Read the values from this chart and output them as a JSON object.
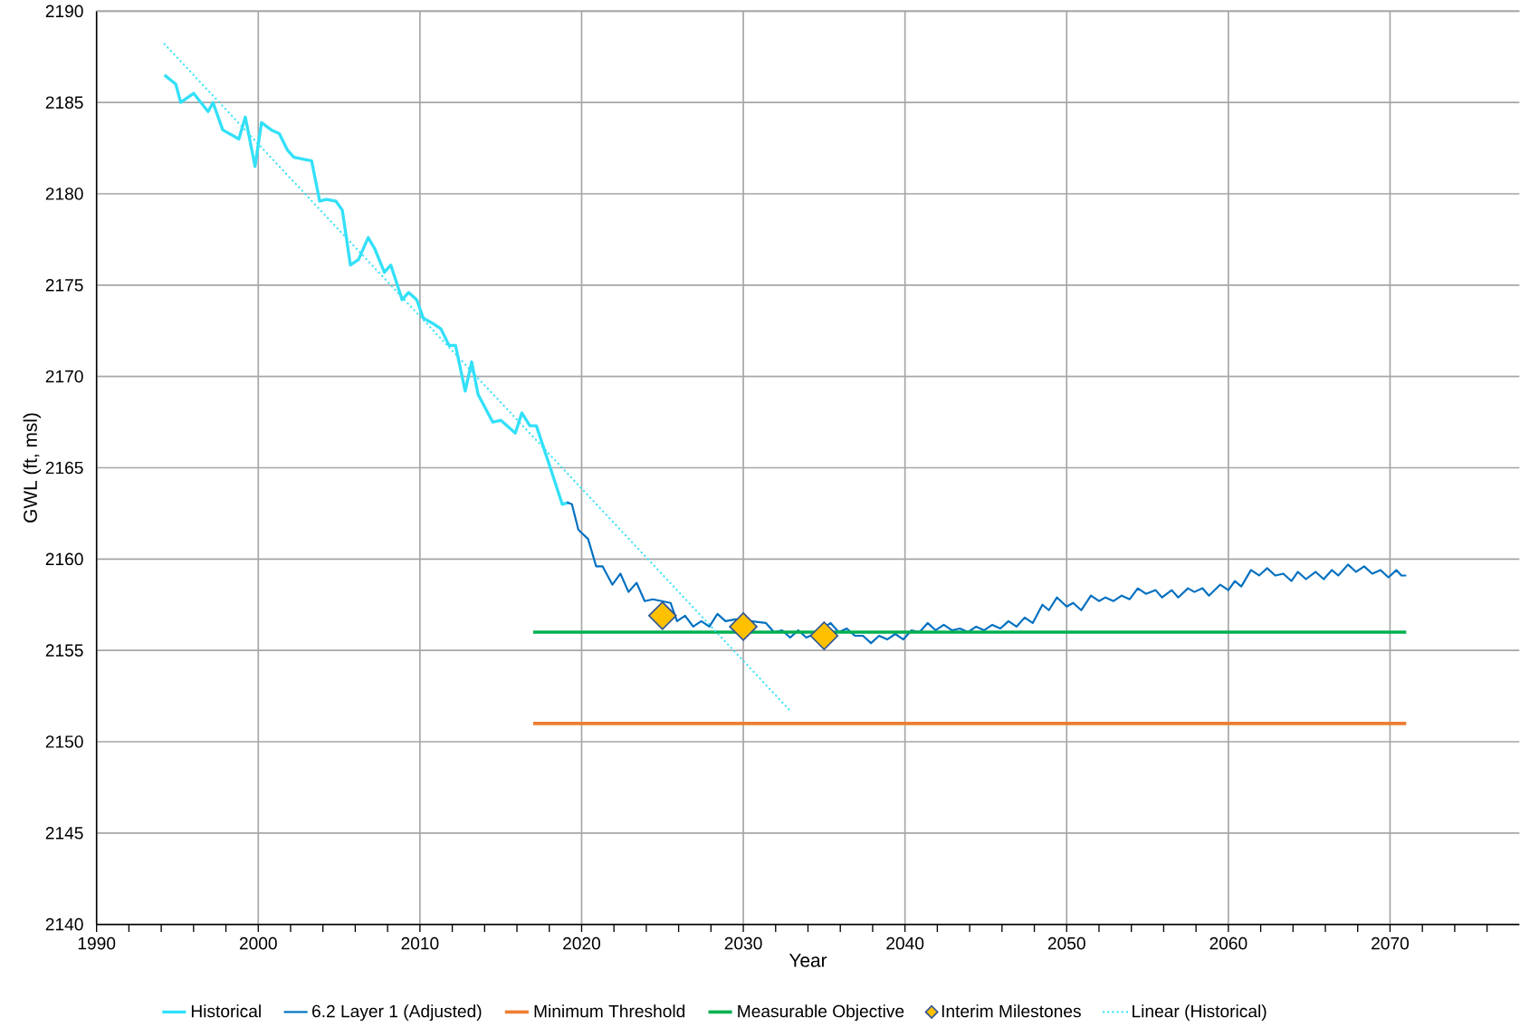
{
  "chart_data": {
    "type": "line",
    "xlabel": "Year",
    "ylabel": "GWL (ft, msl)",
    "xlim": [
      1990,
      2078
    ],
    "ylim": [
      2140,
      2190
    ],
    "xticks": [
      1990,
      {
        "value": 1992,
        "label": null
      },
      {
        "value": 1994,
        "label": null
      },
      {
        "value": 1996,
        "label": null
      },
      {
        "value": 1998,
        "label": null
      },
      2000,
      {
        "value": 2002,
        "label": null
      },
      {
        "value": 2004,
        "label": null
      },
      {
        "value": 2006,
        "label": null
      },
      {
        "value": 2008,
        "label": null
      },
      2010,
      {
        "value": 2012,
        "label": null
      },
      {
        "value": 2014,
        "label": null
      },
      {
        "value": 2016,
        "label": null
      },
      {
        "value": 2018,
        "label": null
      },
      2020,
      {
        "value": 2022,
        "label": null
      },
      {
        "value": 2024,
        "label": null
      },
      {
        "value": 2026,
        "label": null
      },
      {
        "value": 2028,
        "label": null
      },
      2030,
      {
        "value": 2032,
        "label": null
      },
      {
        "value": 2034,
        "label": null
      },
      {
        "value": 2036,
        "label": null
      },
      {
        "value": 2038,
        "label": null
      },
      2040,
      {
        "value": 2042,
        "label": null
      },
      {
        "value": 2044,
        "label": null
      },
      {
        "value": 2046,
        "label": null
      },
      {
        "value": 2048,
        "label": null
      },
      2050,
      {
        "value": 2052,
        "label": null
      },
      {
        "value": 2054,
        "label": null
      },
      {
        "value": 2056,
        "label": null
      },
      {
        "value": 2058,
        "label": null
      },
      2060,
      {
        "value": 2062,
        "label": null
      },
      {
        "value": 2064,
        "label": null
      },
      {
        "value": 2066,
        "label": null
      },
      {
        "value": 2068,
        "label": null
      },
      2070,
      {
        "value": 2072,
        "label": null
      },
      {
        "value": 2074,
        "label": null
      },
      {
        "value": 2076,
        "label": null
      }
    ],
    "yticks": [
      2140,
      2145,
      2150,
      2155,
      2160,
      2165,
      2170,
      2175,
      2180,
      2185,
      2190
    ],
    "grid": true,
    "legend": "bottom",
    "series": [
      {
        "name": "Historical",
        "type": "line",
        "color": "#33e0f8",
        "line_style": "solid",
        "x": [
          1994.2,
          1994.9,
          1995.2,
          1996.0,
          1996.9,
          1997.2,
          1997.8,
          1998.8,
          1999.2,
          1999.8,
          2000.2,
          2000.8,
          2001.3,
          2001.8,
          2002.2,
          2003.3,
          2003.8,
          2004.2,
          2004.8,
          2005.2,
          2005.7,
          2006.2,
          2006.8,
          2007.2,
          2007.8,
          2008.2,
          2008.9,
          2009.3,
          2009.8,
          2010.2,
          2010.8,
          2011.3,
          2011.8,
          2012.2,
          2012.8,
          2013.2,
          2013.6,
          2014.5,
          2015.0,
          2015.9,
          2016.3,
          2016.8,
          2017.2,
          2018.1,
          2018.8,
          2019.2
        ],
        "values": [
          2186.5,
          2186.0,
          2185.0,
          2185.5,
          2184.5,
          2185.0,
          2183.5,
          2183.0,
          2184.2,
          2181.5,
          2183.9,
          2183.5,
          2183.3,
          2182.4,
          2182.0,
          2181.8,
          2179.6,
          2179.7,
          2179.6,
          2179.1,
          2176.1,
          2176.4,
          2177.6,
          2177.0,
          2175.7,
          2176.1,
          2174.2,
          2174.6,
          2174.2,
          2173.2,
          2172.9,
          2172.6,
          2171.7,
          2171.7,
          2169.2,
          2170.8,
          2169.0,
          2167.5,
          2167.6,
          2166.9,
          2168.0,
          2167.3,
          2167.3,
          2164.9,
          2163.0,
          2163.1
        ]
      },
      {
        "name": "6.2 Layer 1 (Adjusted)",
        "type": "line",
        "color": "#0070c0",
        "line_style": "solid",
        "x": [
          2019.1,
          2019.4,
          2019.8,
          2020.4,
          2020.9,
          2021.3,
          2021.9,
          2022.4,
          2022.9,
          2023.4,
          2023.9,
          2024.4,
          2024.9,
          2025.5,
          2025.9,
          2026.4,
          2026.9,
          2027.4,
          2027.9,
          2028.4,
          2028.9,
          2029.5,
          2030.1,
          2031.4,
          2031.9,
          2032.4,
          2032.9,
          2033.4,
          2033.9,
          2034.4,
          2035.4,
          2035.9,
          2036.4,
          2036.9,
          2037.4,
          2037.9,
          2038.4,
          2038.9,
          2039.4,
          2039.9,
          2040.4,
          2040.9,
          2041.4,
          2041.9,
          2042.4,
          2042.9,
          2043.4,
          2043.9,
          2044.4,
          2044.9,
          2045.4,
          2045.9,
          2046.4,
          2046.9,
          2047.4,
          2047.9,
          2048.5,
          2048.9,
          2049.4,
          2050.0,
          2050.4,
          2050.9,
          2051.5,
          2052.0,
          2052.4,
          2052.9,
          2053.4,
          2053.9,
          2054.4,
          2054.9,
          2055.5,
          2055.9,
          2056.5,
          2056.9,
          2057.5,
          2057.9,
          2058.4,
          2058.8,
          2059.5,
          2060.0,
          2060.4,
          2060.8,
          2061.4,
          2061.9,
          2062.4,
          2062.9,
          2063.4,
          2063.9,
          2064.3,
          2064.8,
          2065.4,
          2065.9,
          2066.4,
          2066.8,
          2067.4,
          2067.9,
          2068.4,
          2068.9,
          2069.4,
          2069.9,
          2070.4,
          2070.7,
          2071.0
        ],
        "values": [
          2163.1,
          2163.0,
          2161.6,
          2161.1,
          2159.6,
          2159.6,
          2158.6,
          2159.2,
          2158.2,
          2158.7,
          2157.7,
          2157.8,
          null,
          2157.6,
          2156.6,
          2156.9,
          2156.3,
          2156.6,
          2156.3,
          2157.0,
          2156.6,
          2156.7,
          null,
          2156.5,
          2156.0,
          2156.1,
          2155.7,
          2156.1,
          2155.7,
          2155.9,
          2156.5,
          2156.0,
          2156.2,
          2155.8,
          2155.8,
          2155.4,
          2155.8,
          2155.6,
          2155.9,
          2155.6,
          2156.1,
          2156.0,
          2156.5,
          2156.1,
          2156.4,
          2156.1,
          2156.2,
          2156.0,
          2156.3,
          2156.1,
          2156.4,
          2156.2,
          2156.6,
          2156.3,
          2156.8,
          2156.5,
          2157.5,
          2157.2,
          2157.9,
          2157.4,
          2157.6,
          2157.2,
          2158.0,
          2157.7,
          2157.9,
          2157.7,
          2158.0,
          2157.8,
          2158.4,
          2158.1,
          2158.3,
          2157.9,
          2158.3,
          2157.9,
          2158.4,
          2158.2,
          2158.4,
          2158.0,
          2158.6,
          2158.3,
          2158.8,
          2158.5,
          2159.4,
          2159.1,
          2159.5,
          2159.1,
          2159.2,
          2158.8,
          2159.3,
          2158.9,
          2159.3,
          2158.9,
          2159.4,
          2159.1,
          2159.7,
          2159.3,
          2159.6,
          2159.2,
          2159.4,
          2159.0,
          2159.4,
          2159.1,
          2159.1
        ]
      },
      {
        "name": "Minimum Threshold",
        "type": "line",
        "color": "#ed7d31",
        "line_style": "solid",
        "x": [
          2017,
          2071
        ],
        "values": [
          2151,
          2151
        ]
      },
      {
        "name": "Measurable Objective",
        "type": "line",
        "color": "#00b050",
        "line_style": "solid",
        "x": [
          2017,
          2071
        ],
        "values": [
          2156,
          2156
        ]
      },
      {
        "name": "Interim Milestones",
        "type": "scatter",
        "color": "#ffc000",
        "marker": "diamond",
        "x": [
          2025,
          2030,
          2035
        ],
        "values": [
          2156.9,
          2156.3,
          2155.8
        ]
      },
      {
        "name": "Linear (Historical)",
        "type": "line",
        "color": "#33e0f8",
        "line_style": "dotted",
        "x": [
          1994.2,
          2033.0
        ],
        "values": [
          2188.2,
          2151.6
        ]
      }
    ]
  }
}
